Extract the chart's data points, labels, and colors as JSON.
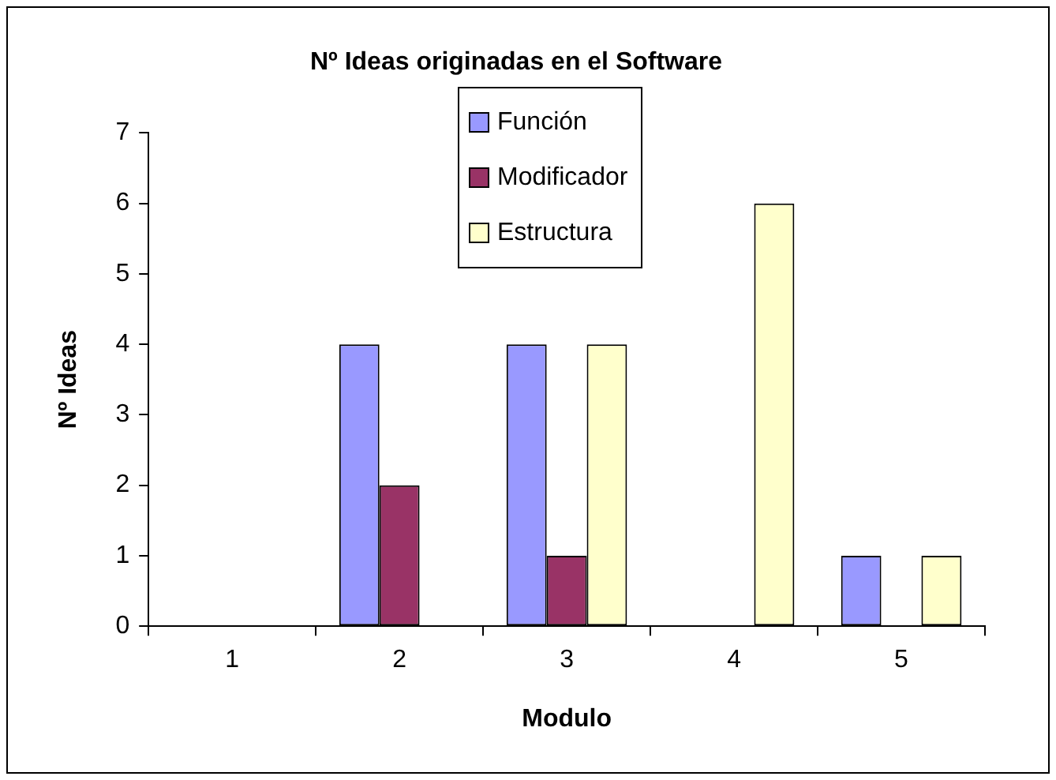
{
  "chart_data": {
    "type": "bar",
    "title": "Nº Ideas originadas en el Software",
    "xlabel": "Modulo",
    "ylabel": "Nº Ideas",
    "categories": [
      "1",
      "2",
      "3",
      "4",
      "5"
    ],
    "series": [
      {
        "name": "Función",
        "color": "#9999ff",
        "values": [
          0,
          4,
          4,
          0,
          1
        ]
      },
      {
        "name": "Modificador",
        "color": "#993366",
        "values": [
          0,
          2,
          1,
          0,
          0
        ]
      },
      {
        "name": "Estructura",
        "color": "#ffffcc",
        "values": [
          0,
          0,
          4,
          6,
          1
        ]
      }
    ],
    "ylim": [
      0,
      7
    ],
    "yticks": [
      0,
      1,
      2,
      3,
      4,
      5,
      6,
      7
    ],
    "legend": "top"
  }
}
